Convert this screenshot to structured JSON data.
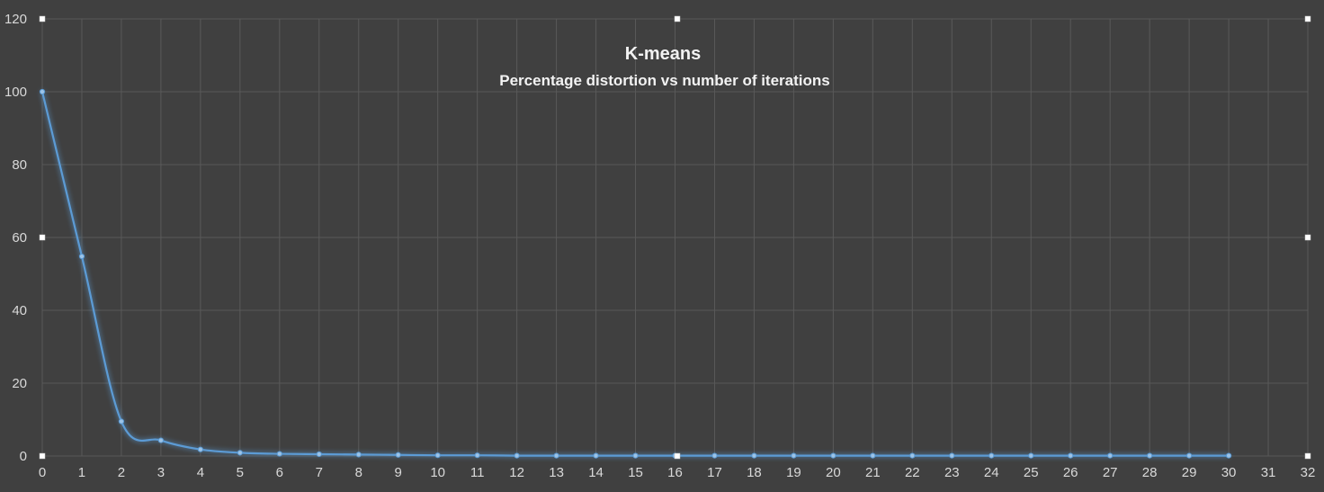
{
  "chart_data": {
    "type": "line",
    "title": "K-means",
    "subtitle": "Percentage distortion vs number of iterations",
    "xlabel": "",
    "ylabel": "",
    "xlim": [
      0,
      32
    ],
    "ylim": [
      0,
      120
    ],
    "x_ticks": [
      0,
      1,
      2,
      3,
      4,
      5,
      6,
      7,
      8,
      9,
      10,
      11,
      12,
      13,
      14,
      15,
      16,
      17,
      18,
      19,
      20,
      21,
      22,
      23,
      24,
      25,
      26,
      27,
      28,
      29,
      30,
      31,
      32
    ],
    "y_ticks": [
      0,
      20,
      40,
      60,
      80,
      100,
      120
    ],
    "grid": true,
    "legend": "none",
    "smooth": true,
    "series": [
      {
        "color": "#5b9bd5",
        "x": [
          0,
          1,
          2,
          3,
          4,
          5,
          6,
          7,
          8,
          9,
          10,
          11,
          12,
          13,
          14,
          15,
          16,
          17,
          18,
          19,
          20,
          21,
          22,
          23,
          24,
          25,
          26,
          27,
          28,
          29,
          30
        ],
        "y": [
          100,
          54.8,
          9.5,
          4.3,
          1.8,
          0.9,
          0.6,
          0.5,
          0.4,
          0.3,
          0.2,
          0.2,
          0.1,
          0.1,
          0.1,
          0.1,
          0.1,
          0.1,
          0.1,
          0.1,
          0.1,
          0.1,
          0.1,
          0.1,
          0.1,
          0.1,
          0.1,
          0.1,
          0.1,
          0.1,
          0.1
        ]
      }
    ]
  },
  "colors": {
    "background": "#404040",
    "grid": "#595959",
    "text": "#d9d9d9",
    "title": "#f2f2f2",
    "series": "#5b9bd5"
  }
}
